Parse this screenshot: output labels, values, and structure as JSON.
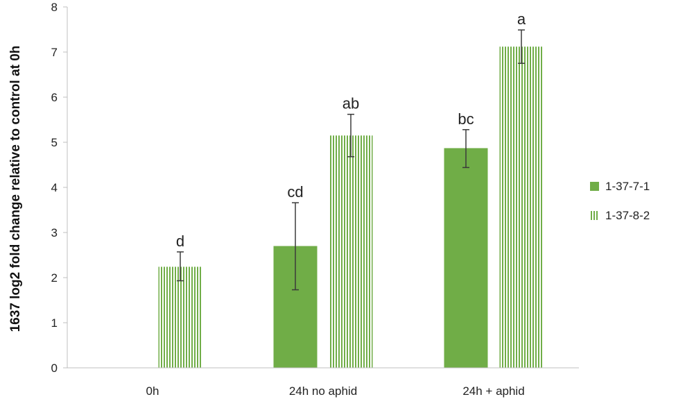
{
  "chart_data": {
    "type": "bar",
    "ylabel": "1637 log2 fold change relative to control at 0h",
    "xlabel": "",
    "ylim": [
      0,
      8
    ],
    "yticks": [
      "0",
      "1",
      "2",
      "3",
      "4",
      "5",
      "6",
      "7",
      "8"
    ],
    "categories": [
      "0h",
      "24h no aphid",
      "24h + aphid"
    ],
    "grid": false,
    "legend_position": "right",
    "series": [
      {
        "name": "1-37-7-1",
        "color": "#70ad47",
        "pattern": "solid",
        "values": [
          null,
          2.7,
          4.87
        ],
        "error_low": [
          null,
          1.73,
          4.44
        ],
        "error_high": [
          null,
          3.66,
          5.28
        ],
        "labels": [
          "",
          "cd",
          "bc"
        ]
      },
      {
        "name": "1-37-8-2",
        "color": "#70ad47",
        "pattern": "vertical-stripes",
        "values": [
          2.24,
          5.15,
          7.12
        ],
        "error_low": [
          1.93,
          4.68,
          6.75
        ],
        "error_high": [
          2.57,
          5.62,
          7.49
        ],
        "labels": [
          "d",
          "ab",
          "a"
        ]
      }
    ]
  }
}
